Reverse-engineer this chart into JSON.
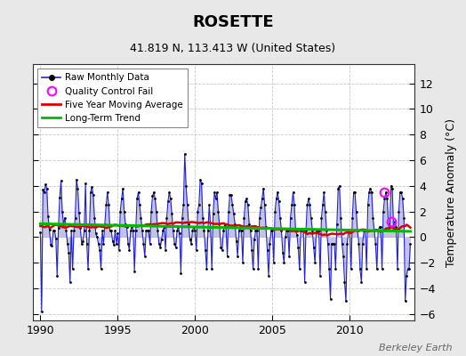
{
  "title": "ROSETTE",
  "subtitle": "41.819 N, 113.413 W (United States)",
  "ylabel": "Temperature Anomaly (°C)",
  "watermark": "Berkeley Earth",
  "xlim": [
    1989.5,
    2014.2
  ],
  "ylim": [
    -6.5,
    13.5
  ],
  "yticks": [
    -6,
    -4,
    -2,
    0,
    2,
    4,
    6,
    8,
    10,
    12
  ],
  "xticks": [
    1990,
    1995,
    2000,
    2005,
    2010
  ],
  "bg_color": "#e8e8e8",
  "plot_bg_color": "#ffffff",
  "raw_color": "#2222cc",
  "raw_fill_color": "#8888cc",
  "dot_color": "#000000",
  "ma_color": "#dd0000",
  "trend_color": "#00bb00",
  "qc_color": "#ff00ff",
  "raw_monthly": [
    0.4,
    -5.8,
    3.7,
    3.5,
    4.1,
    3.8,
    1.6,
    0.6,
    -0.6,
    -0.7,
    0.5,
    0.5,
    -0.1,
    -3.0,
    0.7,
    3.1,
    4.4,
    2.0,
    1.0,
    1.5,
    0.5,
    -0.5,
    -1.2,
    -3.5,
    0.5,
    -2.5,
    0.5,
    1.5,
    4.5,
    3.8,
    1.9,
    0.7,
    -0.5,
    -0.3,
    0.5,
    4.2,
    -0.5,
    -2.5,
    0.5,
    3.5,
    3.9,
    3.3,
    1.5,
    0.3,
    0.0,
    -0.5,
    -1.0,
    -2.5,
    0.5,
    -0.5,
    1.0,
    2.5,
    3.5,
    2.5,
    0.5,
    0.5,
    -0.3,
    -0.6,
    0.5,
    -0.5,
    0.3,
    -1.0,
    2.0,
    3.0,
    3.8,
    2.0,
    1.0,
    0.8,
    -0.5,
    -1.0,
    0.5,
    0.8,
    0.5,
    -2.7,
    0.5,
    3.0,
    3.5,
    2.5,
    1.5,
    0.5,
    -0.5,
    -1.5,
    0.5,
    0.5,
    0.5,
    -0.5,
    2.0,
    3.2,
    3.5,
    3.0,
    2.0,
    0.5,
    -0.5,
    -0.8,
    -0.2,
    0.5,
    0.8,
    -1.0,
    1.5,
    2.8,
    3.5,
    3.0,
    1.8,
    0.5,
    -0.5,
    -0.8,
    0.5,
    0.8,
    0.3,
    -2.8,
    1.5,
    2.5,
    6.5,
    4.0,
    2.5,
    1.0,
    -0.2,
    -0.5,
    0.5,
    0.8,
    0.5,
    -1.0,
    2.0,
    2.5,
    4.5,
    4.2,
    1.5,
    0.5,
    -1.0,
    -2.5,
    0.5,
    2.5,
    0.8,
    -2.5,
    1.8,
    3.5,
    3.0,
    3.5,
    2.0,
    0.8,
    -0.8,
    -1.0,
    0.5,
    1.0,
    0.8,
    -1.5,
    2.0,
    3.3,
    3.3,
    2.5,
    1.8,
    1.0,
    -0.3,
    -1.5,
    0.5,
    0.8,
    0.5,
    -2.0,
    1.5,
    2.8,
    3.0,
    2.5,
    1.0,
    0.5,
    -1.0,
    -2.5,
    -0.2,
    0.5,
    0.5,
    -2.5,
    1.5,
    2.3,
    3.0,
    3.8,
    2.5,
    0.8,
    -1.0,
    -3.0,
    -0.5,
    0.5,
    0.5,
    -2.0,
    2.0,
    3.0,
    3.5,
    2.8,
    1.5,
    0.5,
    -1.2,
    -2.0,
    0.0,
    0.5,
    0.5,
    -1.5,
    1.5,
    2.5,
    3.5,
    2.5,
    0.5,
    0.2,
    -0.8,
    -2.5,
    0.5,
    0.5,
    0.5,
    -3.5,
    0.5,
    2.5,
    3.0,
    2.5,
    1.5,
    0.5,
    -0.8,
    -2.0,
    0.5,
    0.5,
    0.5,
    -3.0,
    1.5,
    2.5,
    3.5,
    2.0,
    0.5,
    -0.5,
    -2.5,
    -4.8,
    -0.5,
    -0.5,
    -0.5,
    -2.5,
    1.0,
    3.8,
    4.0,
    1.5,
    -0.5,
    -1.5,
    -3.5,
    -5.0,
    -0.5,
    0.5,
    0.5,
    -2.5,
    1.5,
    3.5,
    3.5,
    2.0,
    0.5,
    -0.5,
    -2.5,
    -3.5,
    -0.5,
    0.5,
    0.5,
    -2.5,
    2.5,
    3.5,
    3.8,
    3.5,
    1.5,
    0.5,
    -0.5,
    -2.5,
    0.5,
    0.8,
    0.8,
    -2.5,
    2.0,
    3.0,
    3.5,
    3.0,
    1.0,
    0.5,
    4.0,
    3.8,
    0.5,
    1.2,
    0.8,
    -2.5,
    2.0,
    3.5,
    3.5,
    3.0,
    1.5,
    -5.0,
    -3.0,
    -2.5,
    -2.5,
    -0.5
  ],
  "qc_fail_points": [
    [
      2012.25,
      3.5
    ],
    [
      2012.67,
      1.2
    ]
  ],
  "start_year": 1990
}
